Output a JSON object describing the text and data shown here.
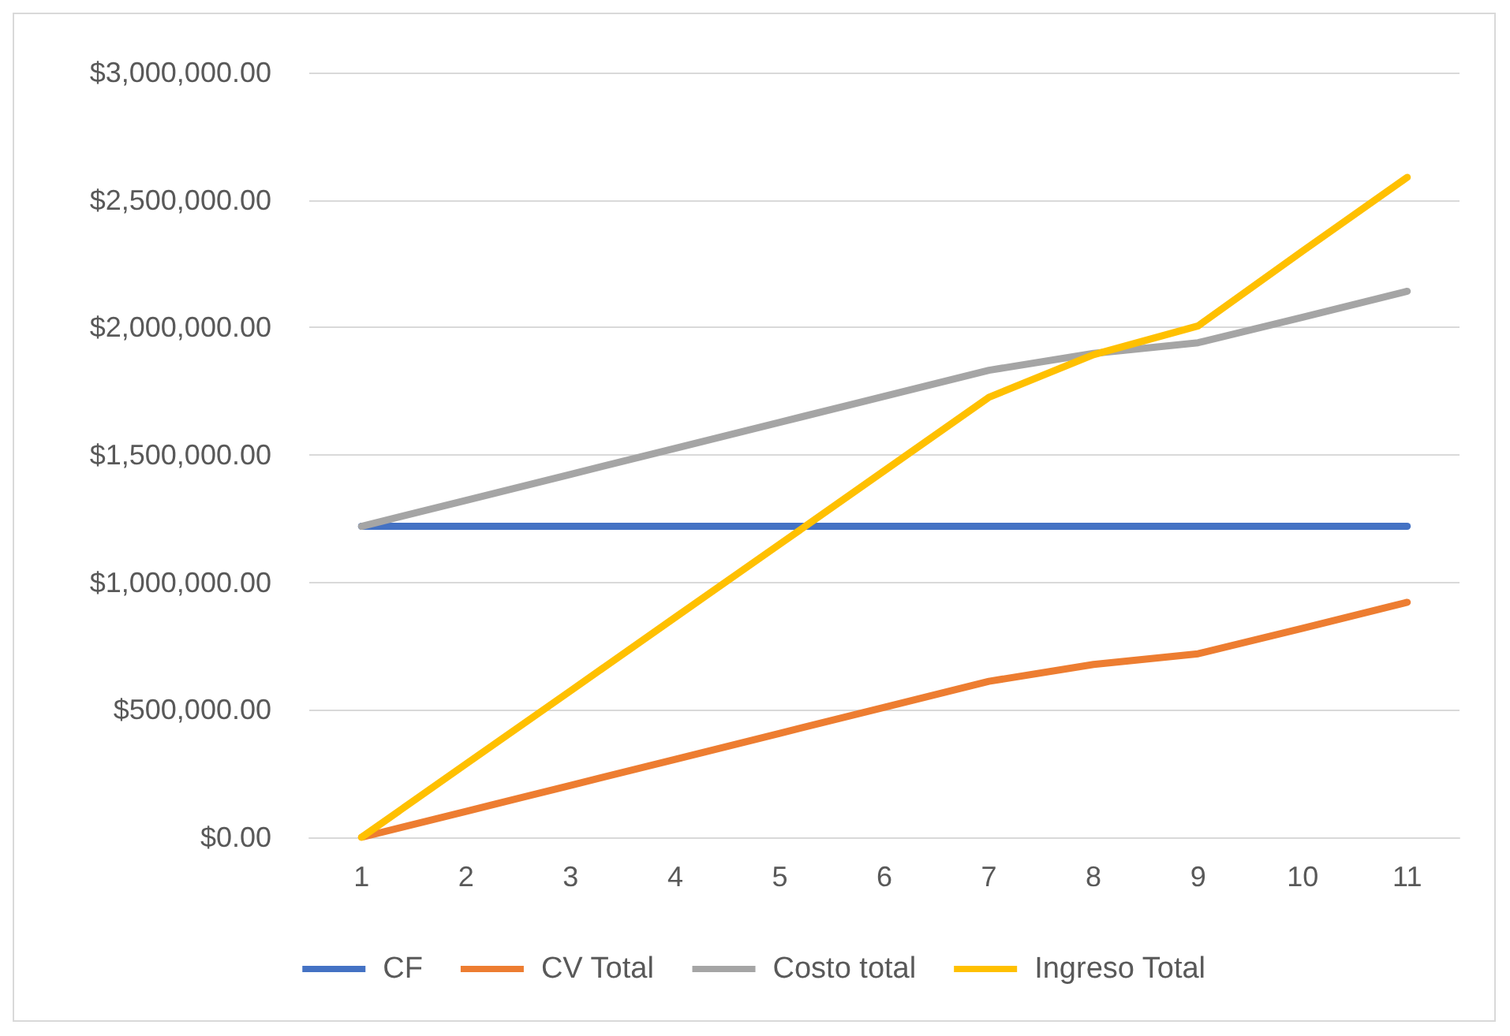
{
  "chart_data": {
    "type": "line",
    "categories": [
      "1",
      "2",
      "3",
      "4",
      "5",
      "6",
      "7",
      "8",
      "9",
      "10",
      "11"
    ],
    "series": [
      {
        "name": "CF",
        "color": "#4472c4",
        "values": [
          1220000,
          1220000,
          1220000,
          1220000,
          1220000,
          1220000,
          1220000,
          1220000,
          1220000,
          1220000,
          1220000
        ]
      },
      {
        "name": "CV Total",
        "color": "#ed7d31",
        "values": [
          0,
          102000,
          204000,
          306000,
          408000,
          510000,
          612000,
          678000,
          720000,
          820000,
          922000
        ]
      },
      {
        "name": "Costo total",
        "color": "#a5a5a5",
        "values": [
          1220000,
          1322000,
          1424000,
          1526000,
          1628000,
          1730000,
          1832000,
          1898000,
          1940000,
          2040000,
          2142000
        ]
      },
      {
        "name": "Ingreso Total",
        "color": "#ffc000",
        "values": [
          0,
          288000,
          575000,
          863000,
          1150000,
          1438000,
          1726000,
          1893000,
          2006000,
          2300000,
          2589000
        ]
      }
    ],
    "ylim": [
      0,
      3000000
    ],
    "yticks": [
      {
        "value": 0,
        "label": "$0.00"
      },
      {
        "value": 500000,
        "label": "$500,000.00"
      },
      {
        "value": 1000000,
        "label": "$1,000,000.00"
      },
      {
        "value": 1500000,
        "label": "$1,500,000.00"
      },
      {
        "value": 2000000,
        "label": "$2,000,000.00"
      },
      {
        "value": 2500000,
        "label": "$2,500,000.00"
      },
      {
        "value": 3000000,
        "label": "$3,000,000.00"
      }
    ],
    "grid": "y",
    "legend": "bottom",
    "marker": "none",
    "line_style": "solid"
  }
}
